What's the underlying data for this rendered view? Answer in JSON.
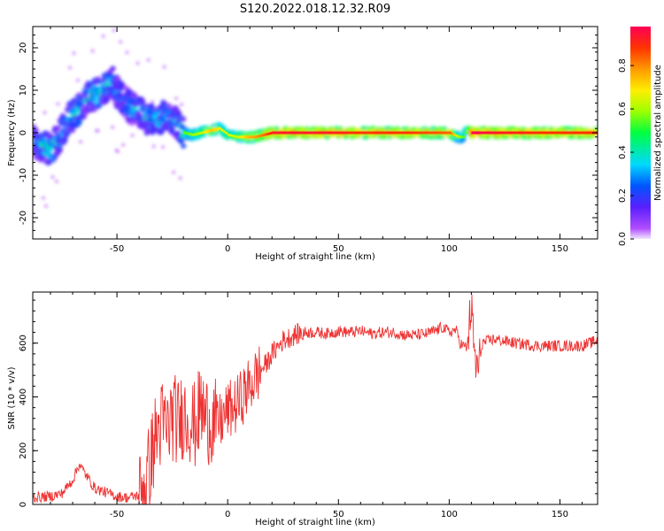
{
  "title": "S120.2022.018.12.32.R09",
  "colors": {
    "snr_line": "#ee3333",
    "axis": "#000000"
  },
  "colorbar": {
    "label": "Normalized spectral amplitude",
    "ticks": [
      "0.0",
      "0.2",
      "0.4",
      "0.6",
      "0.8"
    ],
    "tick_values": [
      0.0,
      0.2,
      0.4,
      0.6,
      0.8
    ],
    "range": [
      0,
      0.98
    ],
    "colormap": "gist_rainbow_r (violet-blue-cyan-green-yellow-orange-red)"
  },
  "chart_data": [
    {
      "type": "heatmap",
      "xlabel": "Height of straight line (km)",
      "ylabel": "Frequency (Hz)",
      "xlim": [
        -88,
        167
      ],
      "ylim": [
        -25,
        25
      ],
      "xticks": [
        -50,
        0,
        50,
        100,
        150
      ],
      "xtick_labels": [
        "-50",
        "0",
        "50",
        "100",
        "150"
      ],
      "yticks": [
        -20,
        -10,
        0,
        10,
        20
      ],
      "ytick_labels": [
        "-20",
        "-10",
        "0",
        "10",
        "20"
      ],
      "ridge_x": [
        -88,
        -84,
        -80,
        -76,
        -72,
        -68,
        -64,
        -60,
        -56,
        -52,
        -48,
        -44,
        -40,
        -36,
        -32,
        -28,
        -24,
        -20,
        -16,
        -12,
        -8,
        -4,
        0,
        4,
        8,
        12,
        16,
        20,
        40,
        60,
        80,
        100,
        104,
        106,
        108,
        110,
        120,
        140,
        160,
        167
      ],
      "ridge_freq": [
        -2,
        -3,
        -4,
        -1,
        3,
        5,
        8,
        9,
        10,
        12,
        8,
        6,
        5,
        3,
        3,
        4,
        3,
        0,
        -0.5,
        0,
        0.5,
        1,
        -0.5,
        -1,
        -1,
        -1,
        -0.5,
        0,
        0,
        0,
        0,
        0,
        -1,
        -1,
        1,
        0,
        0,
        0,
        0,
        0
      ],
      "ridge_amplitude": [
        0.3,
        0.45,
        0.5,
        0.4,
        0.4,
        0.45,
        0.45,
        0.5,
        0.45,
        0.4,
        0.35,
        0.4,
        0.4,
        0.45,
        0.45,
        0.4,
        0.35,
        0.5,
        0.55,
        0.6,
        0.7,
        0.65,
        0.6,
        0.6,
        0.7,
        0.75,
        0.8,
        0.9,
        0.9,
        0.85,
        0.85,
        0.8,
        0.55,
        0.5,
        0.5,
        0.95,
        0.9,
        0.85,
        0.85,
        0.85
      ]
    },
    {
      "type": "line",
      "xlabel": "Height of straight line (km)",
      "ylabel": "SNR (10 * v/v)",
      "xlim": [
        -88,
        167
      ],
      "ylim": [
        0,
        790
      ],
      "xticks": [
        -50,
        0,
        50,
        100,
        150
      ],
      "xtick_labels": [
        "-50",
        "0",
        "50",
        "100",
        "150"
      ],
      "yticks": [
        0,
        200,
        400,
        600
      ],
      "ytick_labels": [
        "0",
        "200",
        "400",
        "600"
      ],
      "series": [
        {
          "x": [
            -88,
            -80,
            -75,
            -70,
            -67,
            -64,
            -60,
            -55,
            -50,
            -45,
            -40,
            -37,
            -35,
            -33,
            -30,
            -27,
            -25,
            -22,
            -20,
            -17,
            -15,
            -12,
            -10,
            -7,
            -5,
            -3,
            0,
            3,
            5,
            8,
            10,
            13,
            15,
            18,
            20,
            25,
            30,
            35,
            40,
            45,
            50,
            55,
            60,
            65,
            70,
            75,
            80,
            85,
            90,
            95,
            97,
            100,
            103,
            105,
            108,
            110,
            111,
            112,
            113,
            115,
            120,
            130,
            140,
            150,
            160,
            167
          ],
          "y": [
            25,
            30,
            40,
            90,
            150,
            110,
            60,
            45,
            30,
            25,
            35,
            80,
            150,
            240,
            300,
            280,
            330,
            300,
            340,
            320,
            290,
            360,
            320,
            310,
            300,
            310,
            350,
            360,
            380,
            420,
            440,
            480,
            500,
            530,
            560,
            610,
            630,
            640,
            640,
            635,
            645,
            640,
            645,
            635,
            640,
            640,
            630,
            630,
            635,
            650,
            660,
            640,
            650,
            600,
            580,
            740,
            600,
            520,
            500,
            600,
            615,
            600,
            590,
            590,
            590,
            610
          ]
        }
      ]
    }
  ]
}
